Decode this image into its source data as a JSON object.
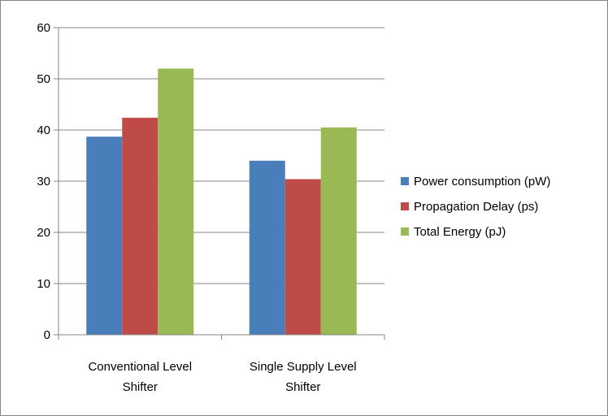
{
  "chart_data": {
    "type": "bar",
    "categories": [
      [
        "Conventional Level",
        "Shifter"
      ],
      [
        "Single Supply Level",
        "Shifter"
      ]
    ],
    "series": [
      {
        "name": "Power consumption (pW)",
        "values": [
          38.7,
          34.0
        ],
        "color": "#4a7ebb"
      },
      {
        "name": "Propagation Delay (ps)",
        "values": [
          42.4,
          30.4
        ],
        "color": "#be4b48"
      },
      {
        "name": "Total Energy (pJ)",
        "values": [
          52.0,
          40.5
        ],
        "color": "#98b954"
      }
    ],
    "ylim": [
      0,
      60
    ],
    "yticks": [
      0,
      10,
      20,
      30,
      40,
      50,
      60
    ],
    "grid": true,
    "legend": "right"
  }
}
